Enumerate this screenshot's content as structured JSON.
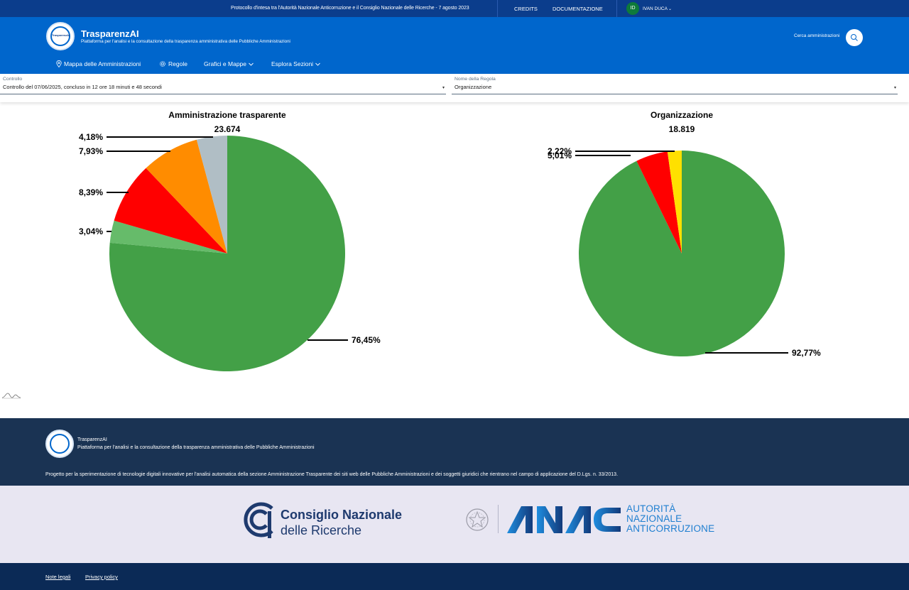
{
  "topbar": {
    "protocol": "Protocollo d'intesa tra l'Autorità Nazionale Anticorruzione e il Consiglio Nazionale delle Ricerche - 7 agosto 2023",
    "credits": "CREDITS",
    "documentation": "DOCUMENTAZIONE",
    "user_initials": "ID",
    "user_name": "IVAN DUCA"
  },
  "header": {
    "logo_text": "TrasparenzAI",
    "brand": "TrasparenzAI",
    "tagline": "Piattaforma per l'analisi e la consultazione della trasparenza amministrativa delle Pubbliche Amministrazioni",
    "search_label": "Cerca amministrazioni"
  },
  "nav": [
    {
      "label": "Mappa delle Amministrazioni",
      "icon": "map-pin-icon"
    },
    {
      "label": "Regole",
      "icon": "gear-icon"
    },
    {
      "label": "Grafici e Mappe",
      "icon": "chevron-down-icon"
    },
    {
      "label": "Esplora Sezioni",
      "icon": "chevron-down-icon"
    }
  ],
  "filters": {
    "controllo": {
      "label": "Controllo",
      "value": "Controllo del 07/06/2025, concluso in 12 ore 18 minuti e 48 secondi"
    },
    "regola": {
      "label": "Nome della Regola",
      "value": "Organizzazione"
    }
  },
  "chart_data": [
    {
      "type": "pie",
      "title": "Amministrazione trasparente",
      "total": "23.674",
      "slices": [
        {
          "label": "76,45%",
          "value": 76.45,
          "color": "#43a047"
        },
        {
          "label": "3,04%",
          "value": 3.04,
          "color": "#66bb6a"
        },
        {
          "label": "8,39%",
          "value": 8.39,
          "color": "#ff0000"
        },
        {
          "label": "7,93%",
          "value": 7.93,
          "color": "#ff8c00"
        },
        {
          "label": "4,18%",
          "value": 4.18,
          "color": "#b0bec5"
        }
      ]
    },
    {
      "type": "pie",
      "title": "Organizzazione",
      "total": "18.819",
      "slices": [
        {
          "label": "92,77%",
          "value": 92.77,
          "color": "#43a047"
        },
        {
          "label": "5,01%",
          "value": 5.01,
          "color": "#ff0000"
        },
        {
          "label": "2,22%",
          "value": 2.22,
          "color": "#ffe000"
        }
      ]
    }
  ],
  "footer": {
    "brand": "TrasparenzAI",
    "tagline": "Piattaforma per l'analisi e la consultazione della trasparenza amministrativa delle Pubbliche Amministrazioni",
    "project": "Progetto per la sperimentazione di tecnologie digitali innovative per l'analisi automatica della sezione Amministrazione Trasparente dei siti web delle Pubbliche Amministrazioni e dei soggetti giuridici che rientrano nel campo di applicazione del D.Lgs. n. 33/2013.",
    "cnr_line1": "Consiglio Nazionale",
    "cnr_line2": "delle Ricerche",
    "anac_line1": "AUTORITÀ",
    "anac_line2": "NAZIONALE",
    "anac_line3": "ANTICORRUZIONE",
    "legal": "Note legali",
    "privacy": "Privacy policy"
  }
}
